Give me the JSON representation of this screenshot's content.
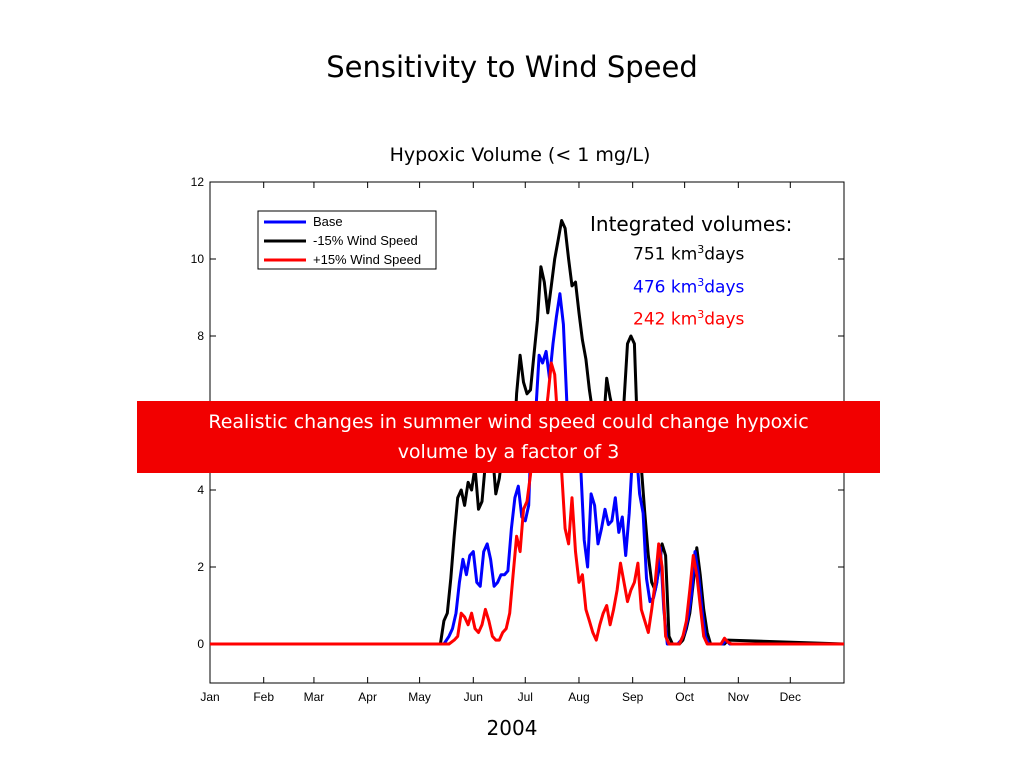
{
  "slide_title": "Sensitivity to Wind Speed",
  "colors": {
    "base": "#0000ff",
    "minus15": "#000000",
    "plus15": "#ff0000",
    "banner": "#f20000"
  },
  "annotation": {
    "heading": "Integrated volumes:",
    "items": [
      {
        "value": "751 km",
        "sup": "3",
        "unit": "days",
        "color": "#000000"
      },
      {
        "value": "476 km",
        "sup": "3",
        "unit": "days",
        "color": "#0000ff"
      },
      {
        "value": "242 km",
        "sup": "3",
        "unit": "days",
        "color": "#ff0000"
      }
    ]
  },
  "banner": {
    "line1": "Realistic changes in summer wind speed could change hypoxic",
    "line2": "volume by a factor of 3"
  },
  "chart_data": {
    "type": "line",
    "title": "Hypoxic Volume (< 1 mg/L)",
    "xlabel": "2004",
    "ylabel": "",
    "xlim": [
      0,
      366
    ],
    "ylim": [
      0,
      12
    ],
    "x_ticks": [
      {
        "label": "Jan",
        "day": 0
      },
      {
        "label": "Feb",
        "day": 31
      },
      {
        "label": "Mar",
        "day": 60
      },
      {
        "label": "Apr",
        "day": 91
      },
      {
        "label": "May",
        "day": 121
      },
      {
        "label": "Jun",
        "day": 152
      },
      {
        "label": "Jul",
        "day": 182
      },
      {
        "label": "Aug",
        "day": 213
      },
      {
        "label": "Sep",
        "day": 244
      },
      {
        "label": "Oct",
        "day": 274
      },
      {
        "label": "Nov",
        "day": 305
      },
      {
        "label": "Dec",
        "day": 335
      }
    ],
    "y_ticks": [
      "0",
      "2",
      "4",
      "6",
      "8",
      "10",
      "12"
    ],
    "legend": {
      "position": "top-left"
    },
    "series": [
      {
        "name": "Base",
        "color": "#0000ff",
        "x": [
          0,
          135,
          138,
          140,
          142,
          144,
          146,
          148,
          150,
          152,
          154,
          156,
          158,
          160,
          162,
          164,
          166,
          168,
          170,
          172,
          174,
          176,
          178,
          180,
          182,
          184,
          186,
          188,
          190,
          192,
          194,
          196,
          198,
          200,
          202,
          204,
          206,
          208,
          210,
          212,
          214,
          216,
          218,
          220,
          222,
          224,
          226,
          228,
          230,
          232,
          234,
          236,
          238,
          240,
          242,
          244,
          246,
          248,
          250,
          252,
          254,
          256,
          258,
          260,
          262,
          264,
          266,
          268,
          270,
          272,
          274,
          276,
          278,
          280,
          282,
          284,
          286,
          288,
          290,
          292,
          294,
          296,
          298,
          300,
          366
        ],
        "y": [
          0,
          0,
          0.2,
          0.4,
          0.8,
          1.6,
          2.2,
          1.8,
          2.3,
          2.4,
          1.6,
          1.5,
          2.4,
          2.6,
          2.2,
          1.5,
          1.6,
          1.8,
          1.8,
          1.9,
          3.0,
          3.8,
          4.1,
          3.3,
          3.2,
          3.6,
          6.2,
          6.0,
          7.5,
          7.3,
          7.6,
          6.9,
          7.8,
          8.5,
          9.1,
          8.3,
          6.3,
          4.7,
          4.6,
          6.0,
          4.6,
          2.7,
          2.0,
          3.9,
          3.6,
          2.6,
          3.0,
          3.5,
          3.1,
          3.2,
          3.8,
          2.9,
          3.3,
          2.3,
          3.4,
          5.0,
          5.1,
          3.9,
          3.4,
          1.7,
          1.1,
          1.2,
          1.6,
          2.5,
          0.9,
          0,
          0,
          0,
          0,
          0.1,
          0.3,
          0.7,
          1.3,
          2.4,
          1.8,
          0.9,
          0.2,
          0,
          0,
          0,
          0,
          0,
          0.1,
          0,
          0
        ],
        "x_is": "day of year"
      },
      {
        "name": "-15% Wind Speed",
        "color": "#000000",
        "x": [
          0,
          133,
          135,
          137,
          139,
          141,
          143,
          145,
          147,
          149,
          151,
          153,
          155,
          157,
          159,
          161,
          163,
          165,
          167,
          169,
          171,
          173,
          175,
          177,
          179,
          181,
          183,
          185,
          187,
          189,
          191,
          193,
          195,
          197,
          199,
          201,
          203,
          205,
          207,
          209,
          211,
          213,
          215,
          217,
          219,
          221,
          223,
          225,
          227,
          229,
          231,
          233,
          235,
          237,
          239,
          241,
          243,
          245,
          247,
          249,
          251,
          253,
          255,
          257,
          259,
          261,
          263,
          265,
          267,
          269,
          271,
          273,
          275,
          277,
          279,
          281,
          283,
          285,
          287,
          289,
          291,
          293,
          295,
          297,
          299,
          366
        ],
        "y": [
          0,
          0,
          0.6,
          0.8,
          1.7,
          2.8,
          3.8,
          4.0,
          3.6,
          4.2,
          4.0,
          4.6,
          3.5,
          3.7,
          4.7,
          5.3,
          5.0,
          3.9,
          4.3,
          5.0,
          5.3,
          5.2,
          4.7,
          6.5,
          7.5,
          6.8,
          6.5,
          6.6,
          7.5,
          8.4,
          9.8,
          9.4,
          8.6,
          9.3,
          10.0,
          10.5,
          11.0,
          10.8,
          10.0,
          9.3,
          9.4,
          8.6,
          7.9,
          7.4,
          6.6,
          6.0,
          5.3,
          4.7,
          5.6,
          6.9,
          6.4,
          6.0,
          5.6,
          4.9,
          6.3,
          7.8,
          8.0,
          7.8,
          5.2,
          4.6,
          3.4,
          2.3,
          1.6,
          1.4,
          1.9,
          2.6,
          2.3,
          0.2,
          0,
          0,
          0,
          0.1,
          0.4,
          0.8,
          1.6,
          2.5,
          1.8,
          0.9,
          0.3,
          0,
          0,
          0,
          0,
          0,
          0.1,
          0
        ]
      },
      {
        "name": "+15% Wind Speed",
        "color": "#ff0000",
        "x": [
          0,
          138,
          141,
          143,
          145,
          147,
          149,
          151,
          153,
          155,
          157,
          159,
          161,
          163,
          165,
          167,
          169,
          171,
          173,
          175,
          177,
          179,
          181,
          183,
          185,
          187,
          189,
          191,
          193,
          195,
          197,
          199,
          201,
          203,
          205,
          207,
          209,
          211,
          213,
          215,
          217,
          219,
          221,
          223,
          225,
          227,
          229,
          231,
          233,
          235,
          237,
          239,
          241,
          243,
          245,
          247,
          249,
          251,
          253,
          255,
          257,
          259,
          261,
          263,
          265,
          267,
          269,
          271,
          273,
          275,
          277,
          279,
          281,
          283,
          285,
          287,
          289,
          291,
          293,
          295,
          297,
          299,
          301,
          303,
          366
        ],
        "y": [
          0,
          0,
          0.1,
          0.2,
          0.8,
          0.7,
          0.5,
          0.8,
          0.4,
          0.3,
          0.5,
          0.9,
          0.6,
          0.2,
          0.1,
          0.1,
          0.3,
          0.4,
          0.8,
          1.8,
          2.8,
          2.4,
          3.5,
          3.7,
          4.4,
          5.5,
          6.0,
          5.9,
          5.7,
          6.4,
          7.3,
          7.0,
          5.6,
          4.5,
          3.0,
          2.6,
          3.8,
          2.4,
          1.6,
          1.8,
          0.9,
          0.6,
          0.3,
          0.1,
          0.5,
          0.8,
          1.0,
          0.5,
          0.9,
          1.4,
          2.1,
          1.6,
          1.1,
          1.4,
          1.6,
          2.1,
          0.9,
          0.6,
          0.3,
          0.9,
          1.6,
          2.6,
          2.0,
          0.2,
          0,
          0,
          0,
          0,
          0.2,
          0.6,
          1.4,
          2.3,
          1.8,
          1.0,
          0.2,
          0,
          0,
          0,
          0,
          0,
          0.15,
          0.05,
          0,
          0,
          0
        ]
      }
    ]
  }
}
